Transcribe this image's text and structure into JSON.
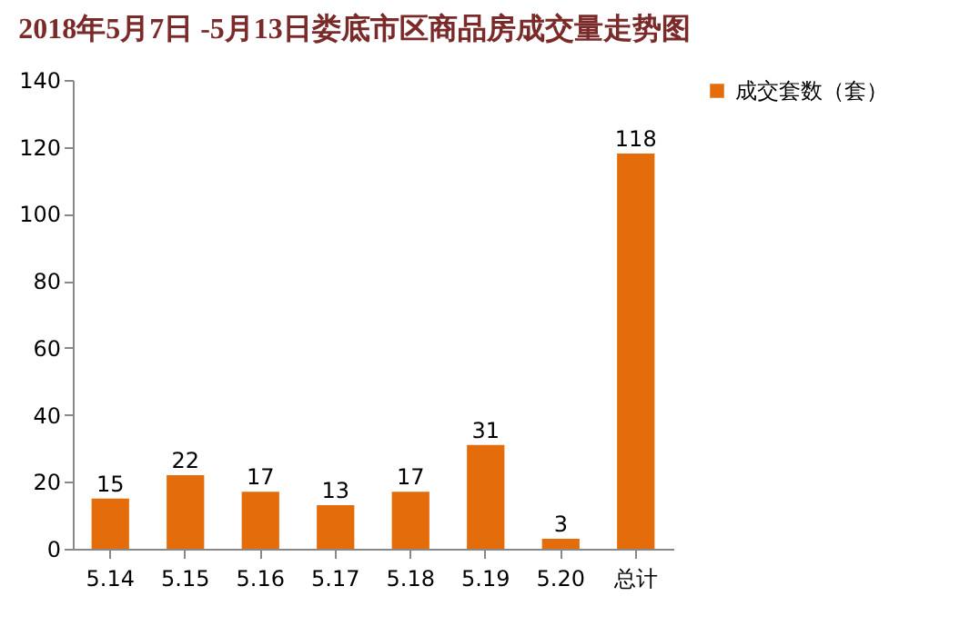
{
  "chart_data": {
    "type": "bar",
    "title": "2018年5月7日 -5月13日娄底市区商品房成交量走势图",
    "categories": [
      "5.14",
      "5.15",
      "5.16",
      "5.17",
      "5.18",
      "5.19",
      "5.20",
      "总计"
    ],
    "series": [
      {
        "name": "成交套数（套）",
        "color": "#e46c0a",
        "values": [
          15,
          22,
          17,
          13,
          17,
          31,
          3,
          118
        ]
      }
    ],
    "ylim": [
      0,
      140
    ],
    "yticks": [
      0,
      20,
      40,
      60,
      80,
      100,
      120,
      140
    ],
    "grid": false,
    "legend": "right",
    "data_labels": true
  }
}
